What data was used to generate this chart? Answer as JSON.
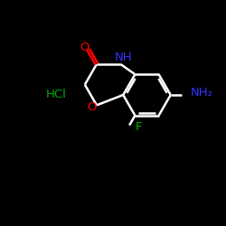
{
  "background_color": "#000000",
  "bond_color": "#ffffff",
  "bond_width": 1.8,
  "atom_colors": {
    "O_carbonyl": "#ff0000",
    "O_ring": "#ff0000",
    "N": "#3333ff",
    "F": "#00bb00",
    "HCl": "#00aa00",
    "NH2": "#3333ff",
    "C": "#ffffff"
  },
  "figsize": [
    2.5,
    2.5
  ],
  "dpi": 100,
  "xlim": [
    0,
    10
  ],
  "ylim": [
    0,
    10
  ]
}
